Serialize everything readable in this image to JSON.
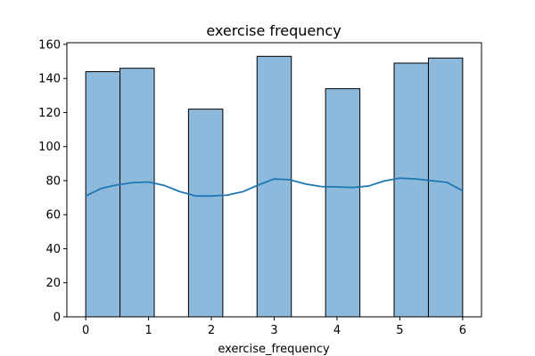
{
  "chart_data": {
    "type": "bar",
    "title": "exercise frequency",
    "xlabel": "exercise_frequency",
    "ylabel": "",
    "bins": [
      {
        "x0": 0.0,
        "x1": 0.545,
        "count": 144
      },
      {
        "x0": 0.545,
        "x1": 1.091,
        "count": 146
      },
      {
        "x0": 1.636,
        "x1": 2.182,
        "count": 122
      },
      {
        "x0": 2.727,
        "x1": 3.273,
        "count": 153
      },
      {
        "x0": 3.818,
        "x1": 4.364,
        "count": 134
      },
      {
        "x0": 4.909,
        "x1": 5.455,
        "count": 149
      },
      {
        "x0": 5.455,
        "x1": 6.0,
        "count": 152
      }
    ],
    "kde": {
      "x": [
        0,
        0.25,
        0.5,
        0.75,
        1.0,
        1.25,
        1.5,
        1.75,
        2.0,
        2.25,
        2.5,
        2.75,
        3.0,
        3.25,
        3.5,
        3.75,
        4.0,
        4.25,
        4.5,
        4.75,
        5.0,
        5.25,
        5.5,
        5.75,
        6.0
      ],
      "y": [
        71,
        75.5,
        77.5,
        78.8,
        79.2,
        77.2,
        73.5,
        71,
        71,
        71.5,
        73.5,
        77.5,
        81,
        80.5,
        78,
        76.5,
        76.3,
        76,
        76.8,
        79.8,
        81.5,
        81,
        80,
        79,
        74
      ]
    },
    "xlim": [
      -0.3,
      6.3
    ],
    "ylim": [
      0,
      161
    ],
    "xticks": [
      "0",
      "1",
      "2",
      "3",
      "4",
      "5",
      "6"
    ],
    "yticks": [
      "0",
      "20",
      "40",
      "60",
      "80",
      "100",
      "120",
      "140",
      "160"
    ],
    "colors": {
      "bar_fill": "#8db9dc",
      "bar_edge": "#000000",
      "kde_line": "#1f77b4"
    }
  }
}
